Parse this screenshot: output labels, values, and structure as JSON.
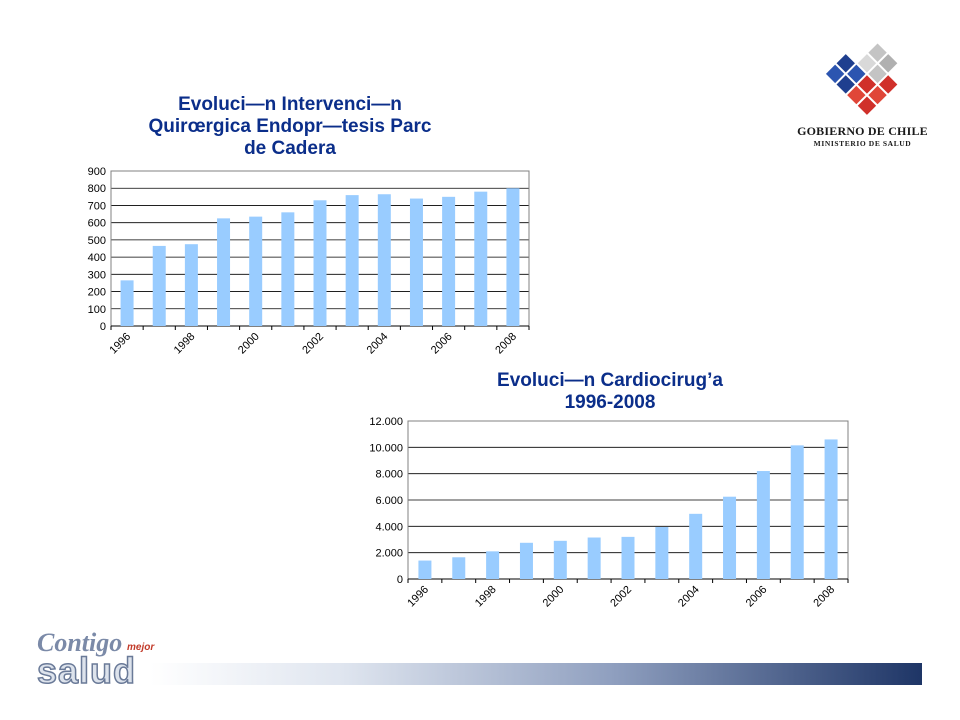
{
  "chart_data": [
    {
      "type": "bar",
      "title": "Evoluci—n Intervenci—n Quirœrgica Endopr—tesis Parc de Cadera",
      "title_lines": [
        "Evoluci—n Intervenci—n",
        "Quirœrgica Endopr—tesis Parc",
        "de Cadera"
      ],
      "categories": [
        "1996",
        "1997",
        "1998",
        "1999",
        "2000",
        "2001",
        "2002",
        "2003",
        "2004",
        "2005",
        "2006",
        "2007",
        "2008"
      ],
      "x_tick_labels": [
        "1996",
        "",
        "1998",
        "",
        "2000",
        "",
        "2002",
        "",
        "2004",
        "",
        "2006",
        "",
        "2008"
      ],
      "values": [
        265,
        465,
        475,
        625,
        635,
        660,
        730,
        760,
        765,
        740,
        750,
        780,
        800
      ],
      "xlabel": "",
      "ylabel": "",
      "ylim": [
        0,
        900
      ],
      "yticks": [
        0,
        100,
        200,
        300,
        400,
        500,
        600,
        700,
        800,
        900
      ],
      "ytick_labels": [
        "0",
        "100",
        "200",
        "300",
        "400",
        "500",
        "600",
        "700",
        "800",
        "900"
      ],
      "grid": true,
      "legend": "none",
      "bar_color": "#99ccff"
    },
    {
      "type": "bar",
      "title": "Evoluci—n Cardiocirug’a 1996-2008",
      "title_lines": [
        "Evoluci—n Cardiocirug’a",
        "1996-2008"
      ],
      "categories": [
        "1996",
        "1997",
        "1998",
        "1999",
        "2000",
        "2001",
        "2002",
        "2003",
        "2004",
        "2005",
        "2006",
        "2007",
        "2008"
      ],
      "x_tick_labels": [
        "1996",
        "",
        "1998",
        "",
        "2000",
        "",
        "2002",
        "",
        "2004",
        "",
        "2006",
        "",
        "2008"
      ],
      "values": [
        1400,
        1650,
        2100,
        2750,
        2900,
        3150,
        3200,
        3950,
        4950,
        6250,
        8200,
        10150,
        10600
      ],
      "xlabel": "",
      "ylabel": "",
      "ylim": [
        0,
        12000
      ],
      "yticks": [
        0,
        2000,
        4000,
        6000,
        8000,
        10000,
        12000
      ],
      "ytick_labels": [
        "0",
        "2.000",
        "4.000",
        "6.000",
        "8.000",
        "10.000",
        "12.000"
      ],
      "grid": true,
      "legend": "none",
      "bar_color": "#99ccff"
    }
  ],
  "logos": {
    "gobierno_name": "GOBIERNO DE CHILE",
    "gobierno_sub": "MINISTERIO DE SALUD",
    "contigo_word": "Contigo",
    "mejor_word": "mejor",
    "salud_word": "salud",
    "colors": {
      "red": "#d0302a",
      "blue": "#1f3f8f",
      "grey": "#b8b8b8"
    }
  },
  "colors": {
    "title": "#0b2e8a",
    "bar": "#99ccff",
    "grid": "#000000"
  }
}
